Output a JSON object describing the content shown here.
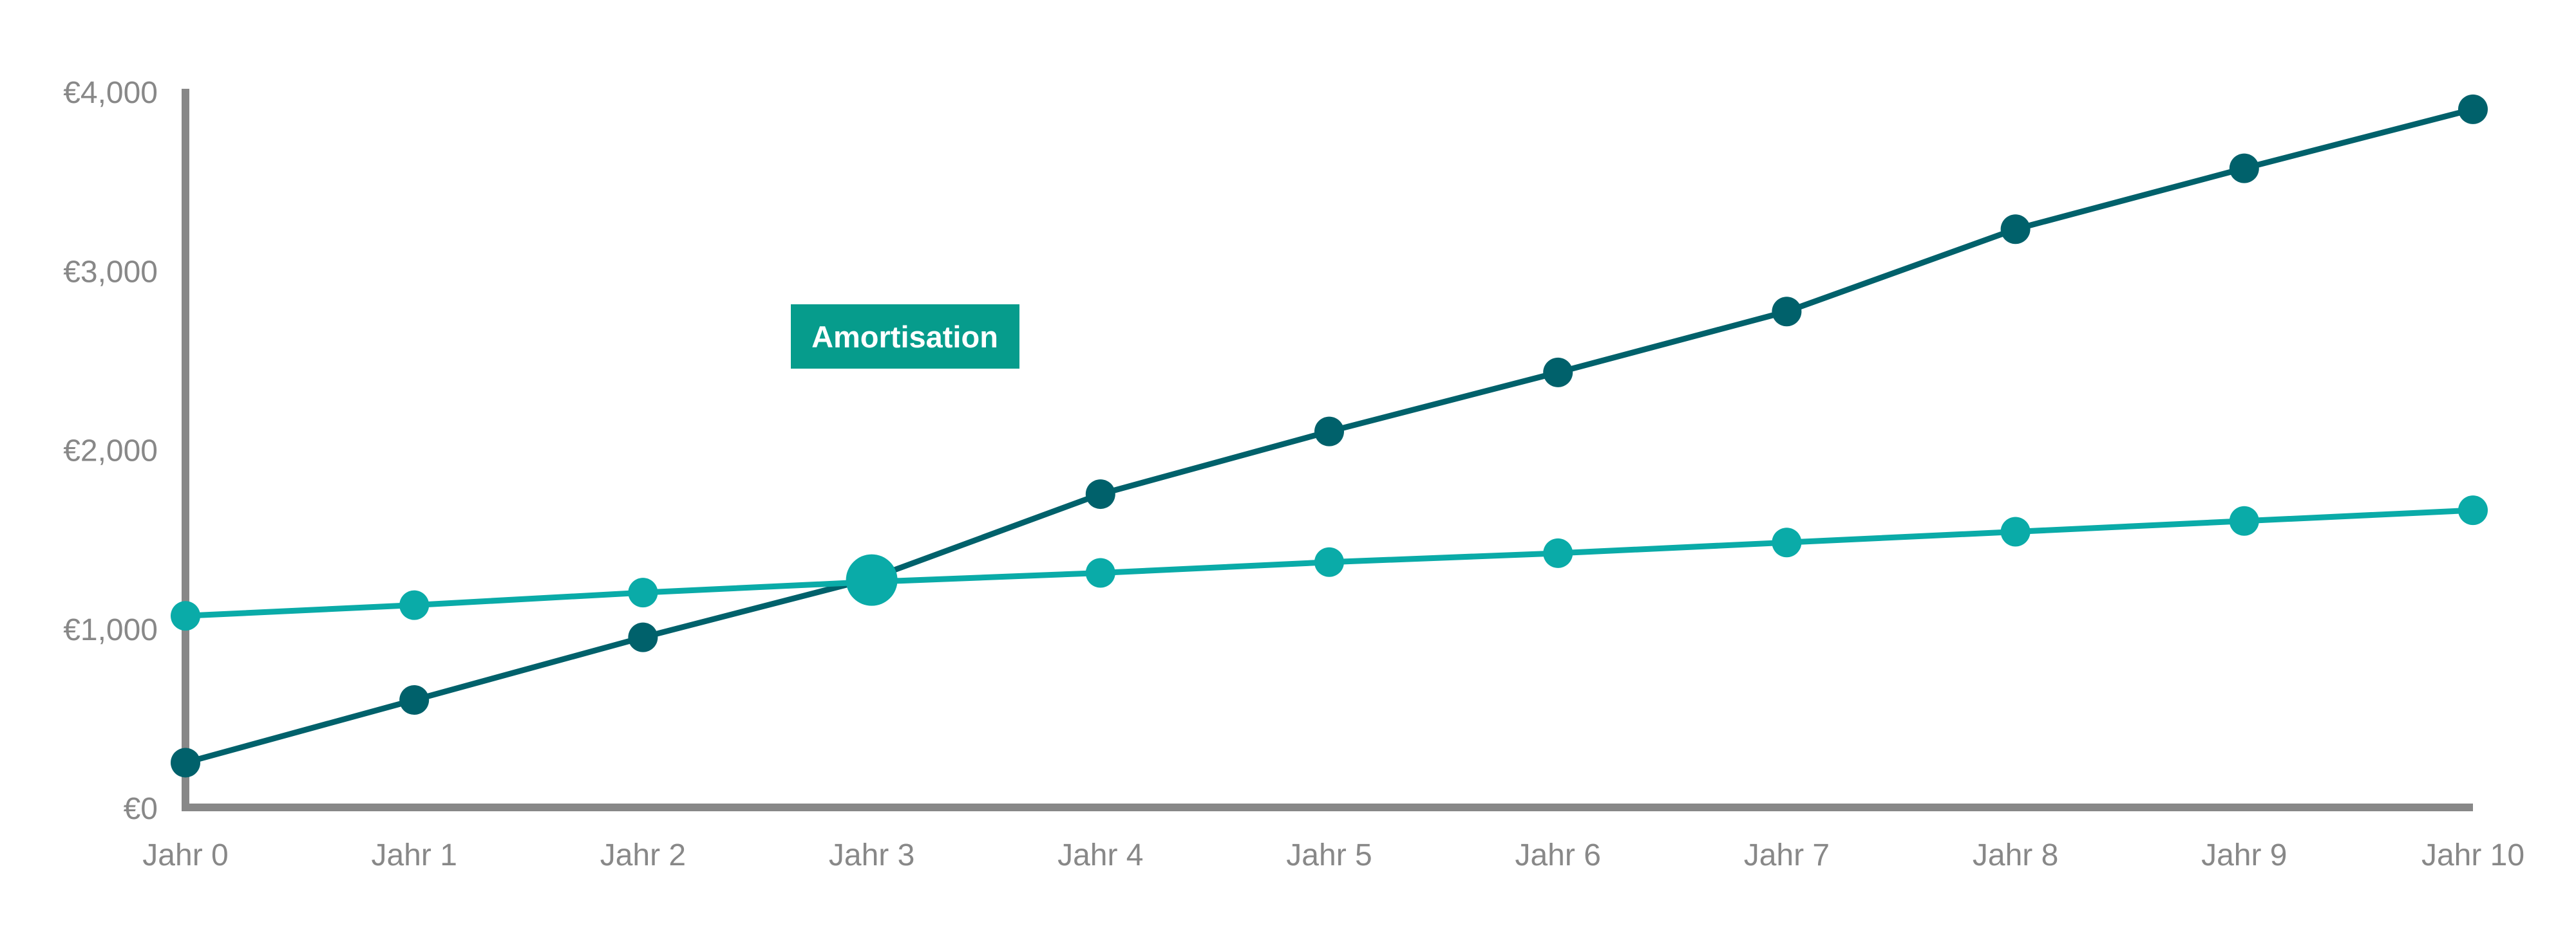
{
  "chart_data": {
    "type": "line",
    "title": "",
    "xlabel": "",
    "ylabel": "",
    "categories": [
      "Jahr 0",
      "Jahr 1",
      "Jahr 2",
      "Jahr 3",
      "Jahr 4",
      "Jahr 5",
      "Jahr 6",
      "Jahr 7",
      "Jahr 8",
      "Jahr 9",
      "Jahr 10"
    ],
    "y_ticks": [
      {
        "value": 0,
        "label": "€0"
      },
      {
        "value": 1000,
        "label": "€1,000"
      },
      {
        "value": 2000,
        "label": "€2,000"
      },
      {
        "value": 3000,
        "label": "€3,000"
      },
      {
        "value": 4000,
        "label": "€4,000"
      }
    ],
    "ylim": [
      0,
      4000
    ],
    "grid": false,
    "legend": "none",
    "series": [
      {
        "key": "dark",
        "color": "#00616b",
        "values": [
          250,
          600,
          950,
          1280,
          1750,
          2100,
          2430,
          2770,
          3230,
          3570,
          3900
        ]
      },
      {
        "key": "light",
        "color": "#0aaba8",
        "values": [
          1070,
          1130,
          1200,
          1260,
          1310,
          1370,
          1420,
          1480,
          1540,
          1600,
          1660
        ]
      }
    ],
    "intersection": {
      "x_index": 3,
      "value": 1270
    },
    "annotation": {
      "text": "Amortisation",
      "background": "#069c8c",
      "color": "#ffffff"
    },
    "axis_color": "#888888",
    "label_color": "#888888"
  }
}
